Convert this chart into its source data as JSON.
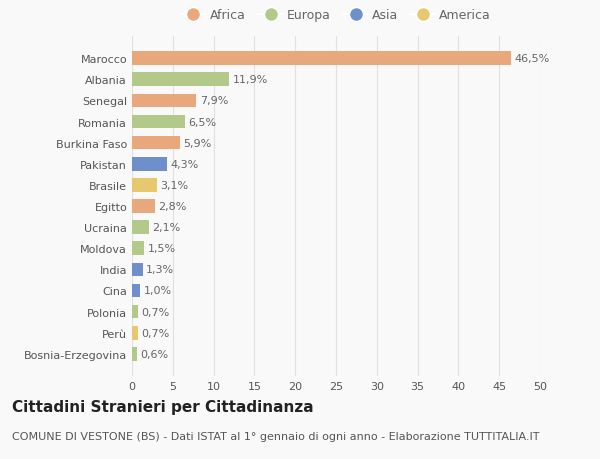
{
  "countries": [
    "Bosnia-Erzegovina",
    "Perù",
    "Polonia",
    "Cina",
    "India",
    "Moldova",
    "Ucraina",
    "Egitto",
    "Brasile",
    "Pakistan",
    "Burkina Faso",
    "Romania",
    "Senegal",
    "Albania",
    "Marocco"
  ],
  "values": [
    0.6,
    0.7,
    0.7,
    1.0,
    1.3,
    1.5,
    2.1,
    2.8,
    3.1,
    4.3,
    5.9,
    6.5,
    7.9,
    11.9,
    46.5
  ],
  "labels": [
    "0,6%",
    "0,7%",
    "0,7%",
    "1,0%",
    "1,3%",
    "1,5%",
    "2,1%",
    "2,8%",
    "3,1%",
    "4,3%",
    "5,9%",
    "6,5%",
    "7,9%",
    "11,9%",
    "46,5%"
  ],
  "colors": [
    "#b3c98a",
    "#e8c86e",
    "#b3c98a",
    "#6e8fc9",
    "#6e8fc9",
    "#b3c98a",
    "#b3c98a",
    "#e8a87c",
    "#e8c86e",
    "#6e8fc9",
    "#e8a87c",
    "#b3c98a",
    "#e8a87c",
    "#b3c98a",
    "#e8a87c"
  ],
  "legend_labels": [
    "Africa",
    "Europa",
    "Asia",
    "America"
  ],
  "legend_colors": [
    "#e8a87c",
    "#b3c98a",
    "#6e8fc9",
    "#e8c86e"
  ],
  "title": "Cittadini Stranieri per Cittadinanza",
  "subtitle": "COMUNE DI VESTONE (BS) - Dati ISTAT al 1° gennaio di ogni anno - Elaborazione TUTTITALIA.IT",
  "xlim": [
    0,
    50
  ],
  "xticks": [
    0,
    5,
    10,
    15,
    20,
    25,
    30,
    35,
    40,
    45,
    50
  ],
  "background_color": "#f9f9f9",
  "grid_color": "#e0e0e0",
  "bar_height": 0.65,
  "title_fontsize": 11,
  "subtitle_fontsize": 8,
  "label_fontsize": 8,
  "tick_fontsize": 8,
  "legend_fontsize": 9
}
